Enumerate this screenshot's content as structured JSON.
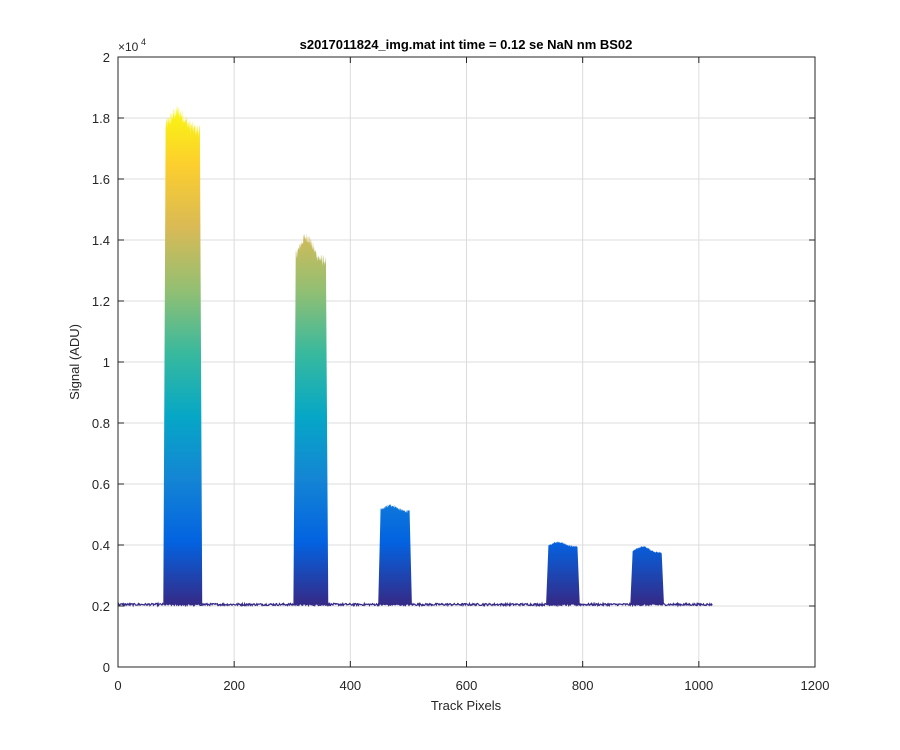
{
  "chart_data": {
    "type": "area",
    "title": "s2017011824_img.mat int time = 0.12 se  NaN nm BS02",
    "xlabel": "Track Pixels",
    "ylabel": "Signal (ADU)",
    "xlim": [
      0,
      1200
    ],
    "ylim": [
      0,
      20000
    ],
    "x_ticks": [
      0,
      200,
      400,
      600,
      800,
      1000,
      1200
    ],
    "x_tick_labels": [
      "0",
      "200",
      "400",
      "600",
      "800",
      "1000",
      "1200"
    ],
    "y_ticks": [
      0,
      2000,
      4000,
      6000,
      8000,
      10000,
      12000,
      14000,
      16000,
      18000,
      20000
    ],
    "y_tick_labels": [
      "0",
      "0.2",
      "0.4",
      "0.6",
      "0.8",
      "1",
      "1.2",
      "1.4",
      "1.6",
      "1.8",
      "2"
    ],
    "y_exponent_label": "×10",
    "y_exponent_power": "4",
    "grid": true,
    "colormap": "parula",
    "baseline": 2050,
    "x_extent": [
      0,
      1023
    ],
    "peaks": [
      {
        "name": "peak-1",
        "x_start": 78,
        "x_end": 145,
        "peak_value": 18200,
        "plateau_value": 17600
      },
      {
        "name": "peak-2",
        "x_start": 302,
        "x_end": 362,
        "peak_value": 14100,
        "plateau_value": 13300
      },
      {
        "name": "peak-3",
        "x_start": 448,
        "x_end": 506,
        "peak_value": 5300,
        "plateau_value": 5100
      },
      {
        "name": "peak-4",
        "x_start": 737,
        "x_end": 795,
        "peak_value": 4100,
        "plateau_value": 3950
      },
      {
        "name": "peak-5",
        "x_start": 882,
        "x_end": 940,
        "peak_value": 3950,
        "plateau_value": 3750
      }
    ],
    "parula_stops": [
      "#352a87",
      "#0363e1",
      "#1485d4",
      "#06a7c6",
      "#38b99e",
      "#92bf73",
      "#d9ba56",
      "#fcce2e",
      "#f9fb0e"
    ]
  }
}
